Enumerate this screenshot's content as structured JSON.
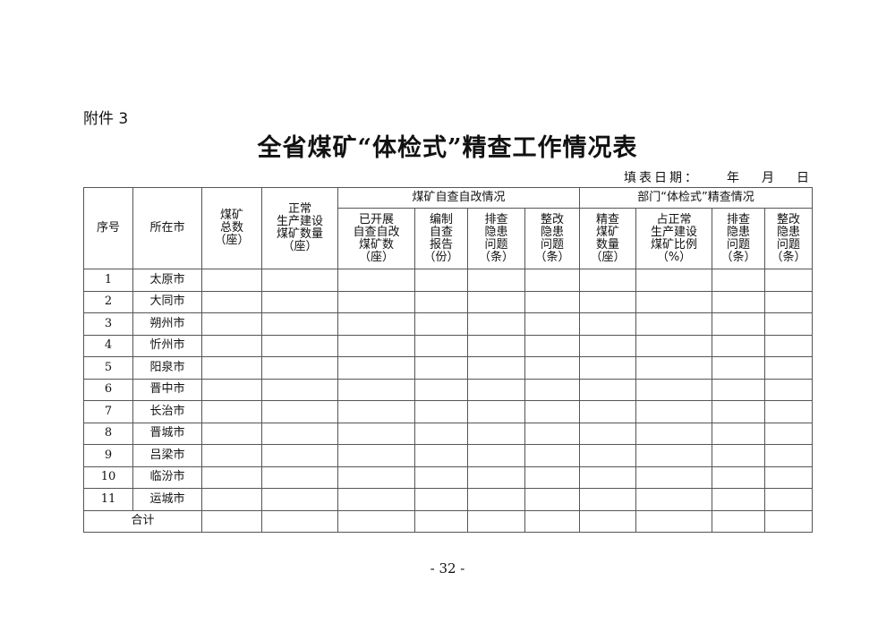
{
  "attachment_label": "附件 3",
  "title": "全省煤矿“体检式”精查工作情况表",
  "date_line": {
    "label": "填表日期：",
    "year": "年",
    "month": "月",
    "day": "日"
  },
  "headers": {
    "seq": "序号",
    "city": "所在市",
    "total": [
      "煤矿",
      "总数",
      "（座）"
    ],
    "normal": [
      "正常",
      "生产建设",
      "煤矿数量",
      "（座）"
    ],
    "group1": "煤矿自查自改情况",
    "group1_cols": [
      [
        "已开展",
        "自查自改",
        "煤矿数",
        "（座）"
      ],
      [
        "编制",
        "自查",
        "报告",
        "（份）"
      ],
      [
        "排查",
        "隐患",
        "问题",
        "（条）"
      ],
      [
        "整改",
        "隐患",
        "问题",
        "（条）"
      ]
    ],
    "group2": "部门“体检式”精查情况",
    "group2_cols": [
      [
        "精查",
        "煤矿",
        "数量",
        "（座）"
      ],
      [
        "占正常",
        "生产建设",
        "煤矿比例",
        "（%）"
      ],
      [
        "排查",
        "隐患",
        "问题",
        "（条）"
      ],
      [
        "整改",
        "隐患",
        "问题",
        "（条）"
      ]
    ]
  },
  "rows": [
    {
      "seq": "1",
      "city": "太原市"
    },
    {
      "seq": "2",
      "city": "大同市"
    },
    {
      "seq": "3",
      "city": "朔州市"
    },
    {
      "seq": "4",
      "city": "忻州市"
    },
    {
      "seq": "5",
      "city": "阳泉市"
    },
    {
      "seq": "6",
      "city": "晋中市"
    },
    {
      "seq": "7",
      "city": "长治市"
    },
    {
      "seq": "8",
      "city": "晋城市"
    },
    {
      "seq": "9",
      "city": "吕梁市"
    },
    {
      "seq": "10",
      "city": "临汾市"
    },
    {
      "seq": "11",
      "city": "运城市"
    }
  ],
  "total_label": "合计",
  "page_number": "- 32 -"
}
